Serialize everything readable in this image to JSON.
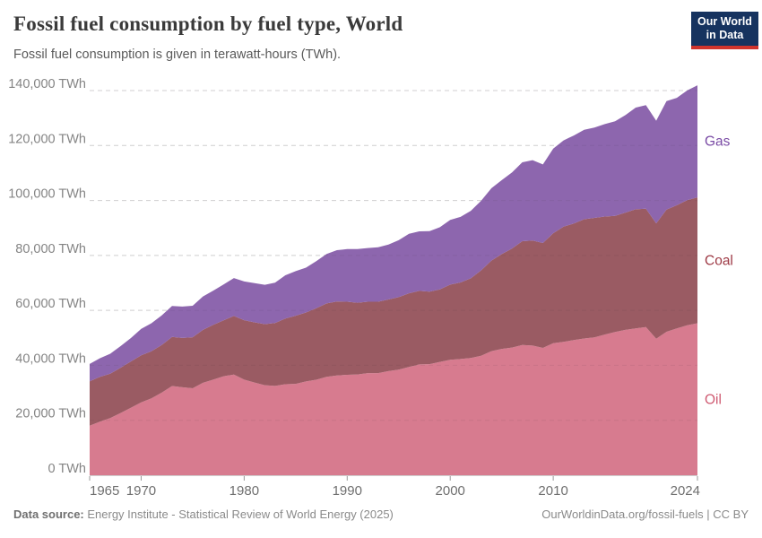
{
  "header": {
    "title": "Fossil fuel consumption by fuel type, World",
    "subtitle": "Fossil fuel consumption is given in terawatt-hours (TWh).",
    "logo": {
      "line1": "Our World",
      "line2": "in Data"
    }
  },
  "chart_data": {
    "type": "area",
    "stacked": true,
    "title": "Fossil fuel consumption by fuel type, World",
    "unit": "TWh",
    "ylim": [
      0,
      140000
    ],
    "grid": true,
    "legend_position": "right-inline",
    "years": [
      1965,
      1966,
      1967,
      1968,
      1969,
      1970,
      1971,
      1972,
      1973,
      1974,
      1975,
      1976,
      1977,
      1978,
      1979,
      1980,
      1981,
      1982,
      1983,
      1984,
      1985,
      1986,
      1987,
      1988,
      1989,
      1990,
      1991,
      1992,
      1993,
      1994,
      1995,
      1996,
      1997,
      1998,
      1999,
      2000,
      2001,
      2002,
      2003,
      2004,
      2005,
      2006,
      2007,
      2008,
      2009,
      2010,
      2011,
      2012,
      2013,
      2014,
      2015,
      2016,
      2017,
      2018,
      2019,
      2020,
      2021,
      2022,
      2023,
      2024
    ],
    "series": [
      {
        "name": "Oil",
        "color": "#d77b8f",
        "label_color": "#cf5b72",
        "values": [
          18055,
          19480,
          20830,
          22640,
          24530,
          26500,
          28000,
          30060,
          32470,
          32000,
          31640,
          33660,
          34800,
          36030,
          36660,
          34780,
          33730,
          32760,
          32500,
          33130,
          33270,
          34120,
          34760,
          35820,
          36320,
          36560,
          36680,
          37180,
          37180,
          37900,
          38450,
          39380,
          40350,
          40430,
          41260,
          42000,
          42300,
          42700,
          43480,
          45180,
          45980,
          46480,
          47380,
          47180,
          46340,
          48060,
          48560,
          49180,
          49770,
          50170,
          51210,
          52120,
          52900,
          53460,
          53920,
          49660,
          52220,
          53410,
          54560,
          55300
        ]
      },
      {
        "name": "Coal",
        "color": "#9a5b63",
        "label_color": "#9e3a45",
        "values": [
          16140,
          16320,
          16125,
          16480,
          16880,
          17170,
          17100,
          17340,
          17860,
          17960,
          18600,
          19250,
          19920,
          20370,
          21310,
          21630,
          21910,
          22240,
          22890,
          23900,
          24780,
          25100,
          26010,
          26720,
          26910,
          26580,
          26110,
          25960,
          25970,
          26070,
          26370,
          26830,
          26740,
          26400,
          26360,
          27390,
          27850,
          28950,
          31080,
          32940,
          34510,
          36060,
          37800,
          38270,
          38180,
          40010,
          41900,
          42410,
          43400,
          43480,
          42930,
          42260,
          42700,
          43320,
          43100,
          42010,
          44470,
          44860,
          45560,
          45840
        ]
      },
      {
        "name": "Gas",
        "color": "#8d66ae",
        "label_color": "#7a4ba5",
        "values": [
          6304,
          6782,
          7254,
          7857,
          8534,
          9604,
          10230,
          10800,
          11290,
          11440,
          11450,
          12170,
          12480,
          13060,
          13800,
          14100,
          14270,
          14320,
          14680,
          15750,
          16210,
          16330,
          17160,
          17970,
          18680,
          19170,
          19500,
          19560,
          19850,
          19970,
          20700,
          21680,
          21660,
          22000,
          22630,
          23550,
          23880,
          24580,
          25340,
          26330,
          26920,
          27660,
          28720,
          29240,
          28580,
          30800,
          31380,
          32060,
          32570,
          32890,
          33640,
          34430,
          35470,
          37030,
          37670,
          37350,
          39480,
          39100,
          39920,
          40800
        ]
      }
    ],
    "yticks": [
      {
        "value": 0,
        "label": "0 TWh"
      },
      {
        "value": 20000,
        "label": "20,000 TWh"
      },
      {
        "value": 40000,
        "label": "40,000 TWh"
      },
      {
        "value": 60000,
        "label": "60,000 TWh"
      },
      {
        "value": 80000,
        "label": "80,000 TWh"
      },
      {
        "value": 100000,
        "label": "100,000 TWh"
      },
      {
        "value": 120000,
        "label": "120,000 TWh"
      },
      {
        "value": 140000,
        "label": "140,000 TWh"
      }
    ],
    "xticks": [
      {
        "year": 1965,
        "label": "1965",
        "align": "start"
      },
      {
        "year": 1970,
        "label": "1970",
        "align": "middle"
      },
      {
        "year": 1980,
        "label": "1980",
        "align": "middle"
      },
      {
        "year": 1990,
        "label": "1990",
        "align": "middle"
      },
      {
        "year": 2000,
        "label": "2000",
        "align": "middle"
      },
      {
        "year": 2010,
        "label": "2010",
        "align": "middle"
      },
      {
        "year": 2024,
        "label": "2024",
        "align": "end"
      }
    ]
  },
  "footer": {
    "source_label": "Data source:",
    "source_text": " Energy Institute - Statistical Review of World Energy (2025)",
    "link_text": "OurWorldinData.org/fossil-fuels",
    "license_text": " | CC BY"
  },
  "colors": {
    "background": "#ffffff",
    "title_text": "#3a3a3a",
    "subtitle_text": "#5a5a5a",
    "axis_text": "#6f6f6f",
    "ytick_text": "#848484",
    "grid": "#e0e0e0",
    "logo_bg": "#16335f",
    "logo_accent": "#d0342c",
    "footer_text": "#8a8a8a"
  }
}
